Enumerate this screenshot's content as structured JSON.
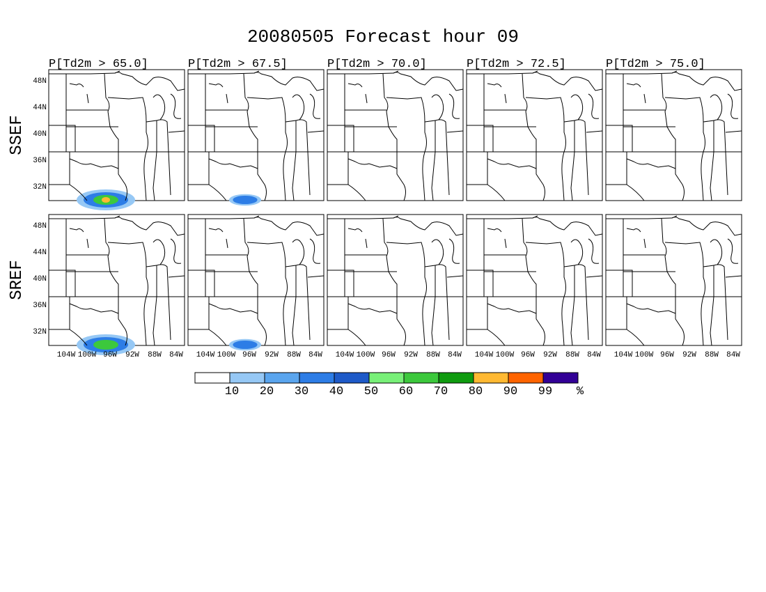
{
  "title": "20080505 Forecast hour 09",
  "columns": [
    "P[Td2m > 65.0]",
    "P[Td2m > 67.5]",
    "P[Td2m > 70.0]",
    "P[Td2m > 72.5]",
    "P[Td2m > 75.0]"
  ],
  "rows": [
    "SSEF",
    "SREF"
  ],
  "lat_labels": [
    "48N",
    "44N",
    "40N",
    "36N",
    "32N"
  ],
  "lon_labels": [
    "104W",
    "100W",
    "96W",
    "92W",
    "88W",
    "84W"
  ],
  "colorbar": {
    "colors": [
      "#ffffff",
      "#96c8f5",
      "#5aa5ee",
      "#2d7de6",
      "#1e5ac8",
      "#78f078",
      "#3cc83c",
      "#0f9b0f",
      "#ffb932",
      "#ff6400",
      "#320096"
    ],
    "labels": [
      "10",
      "20",
      "30",
      "40",
      "50",
      "60",
      "70",
      "80",
      "90",
      "99",
      "%"
    ]
  }
}
